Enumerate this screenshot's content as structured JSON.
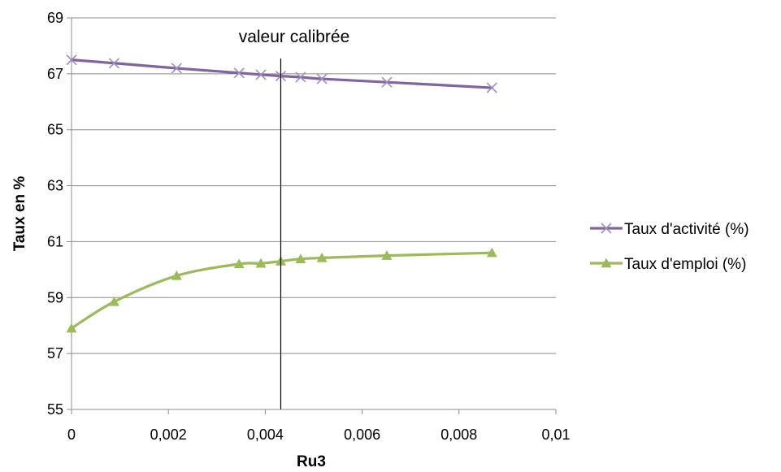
{
  "chart_data": {
    "type": "line",
    "xlabel": "Ru3",
    "ylabel": "Taux en %",
    "xlim": [
      0,
      0.01
    ],
    "ylim": [
      55,
      69
    ],
    "x_ticks": [
      "0",
      "0,002",
      "0,004",
      "0,006",
      "0,008",
      "0,01"
    ],
    "y_ticks": [
      "55",
      "57",
      "59",
      "61",
      "63",
      "65",
      "67",
      "69"
    ],
    "grid": "horizontal",
    "legend_position": "right",
    "annotation": {
      "text": "valeur calibrée",
      "x": 0.00432
    },
    "series": [
      {
        "name": "Taux d'activité (%)",
        "color": "#8064a2",
        "marker": "x",
        "x": [
          0,
          0.00088,
          0.00217,
          0.00346,
          0.00391,
          0.00432,
          0.00473,
          0.00517,
          0.00651,
          0.00868
        ],
        "y": [
          67.5,
          67.38,
          67.2,
          67.03,
          66.97,
          66.92,
          66.88,
          66.82,
          66.7,
          66.5
        ]
      },
      {
        "name": "Taux d'emploi (%)",
        "color": "#9bbb59",
        "marker": "triangle",
        "x": [
          0,
          0.00088,
          0.00217,
          0.00346,
          0.00391,
          0.00432,
          0.00473,
          0.00517,
          0.00651,
          0.00868
        ],
        "y": [
          57.9,
          58.85,
          59.78,
          60.2,
          60.22,
          60.3,
          60.38,
          60.42,
          60.5,
          60.6
        ]
      }
    ]
  }
}
